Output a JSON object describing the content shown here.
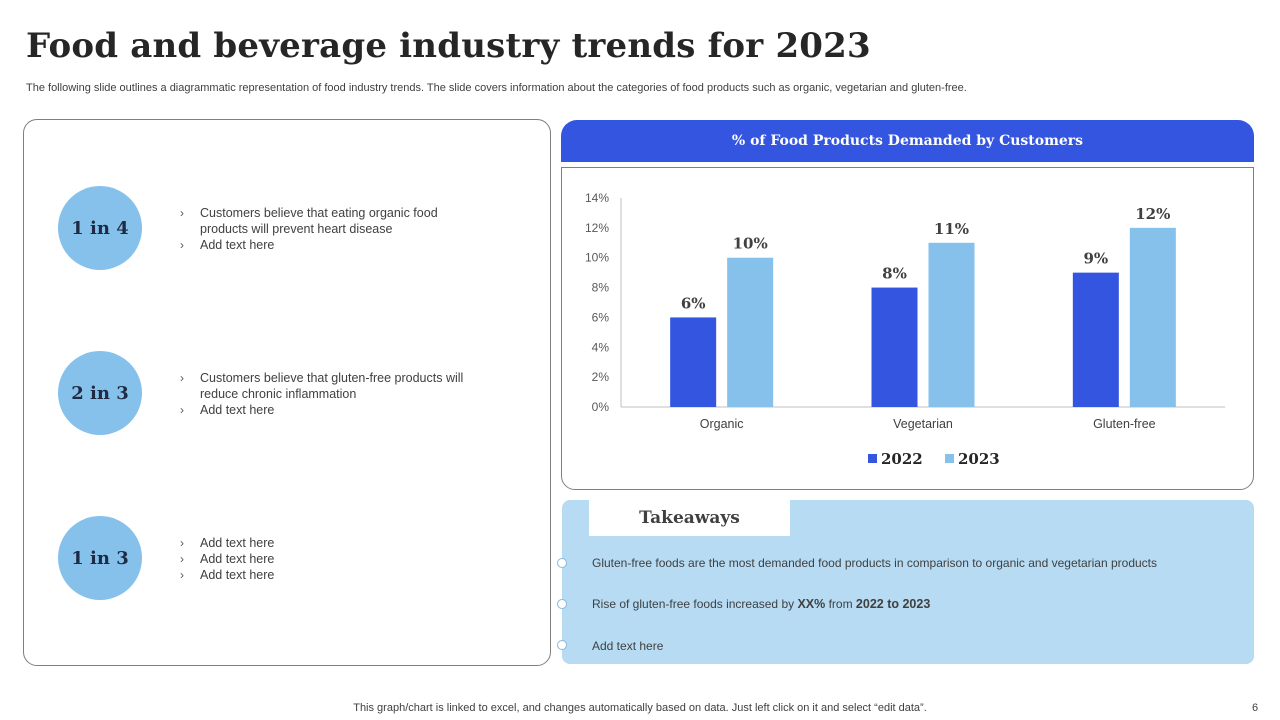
{
  "title": "Food and beverage industry trends for 2023",
  "subtitle": "The following slide outlines a diagrammatic representation of food industry trends. The slide covers information about the categories of food products such as organic, vegetarian and gluten-free.",
  "stats": [
    {
      "label": "1 in 4",
      "bullets": [
        "Customers believe  that eating organic food products will prevent  heart disease",
        "Add text here"
      ]
    },
    {
      "label": "2 in 3",
      "bullets": [
        "Customers believe  that gluten-free  products will reduce chronic inflammation",
        "Add text here"
      ]
    },
    {
      "label": "1 in 3",
      "bullets": [
        "Add text here",
        "Add text here",
        "Add text here"
      ]
    }
  ],
  "bullet_glyph": "›",
  "chart_header": "% of Food Products Demanded by Customers",
  "chart_data": {
    "type": "bar",
    "title": "% of Food Products Demanded by Customers",
    "categories": [
      "Organic",
      "Vegetarian",
      "Gluten-free"
    ],
    "series": [
      {
        "name": "2022",
        "values": [
          6,
          8,
          9
        ],
        "color": "#3355e0"
      },
      {
        "name": "2023",
        "values": [
          10,
          11,
          12
        ],
        "color": "#85c1eb"
      }
    ],
    "ylim": [
      0,
      14
    ],
    "yticks": [
      0,
      2,
      4,
      6,
      8,
      10,
      12,
      14
    ],
    "tick_suffix": "%",
    "label_suffix": "%",
    "legend_position": "bottom",
    "grid": false,
    "xlabel": "",
    "ylabel": ""
  },
  "takeaways": {
    "heading": "Takeaways",
    "item1": "Gluten-free foods are the most demanded food products in comparison to organic and vegetarian products",
    "item2": {
      "prefix": "Rise of gluten-free foods increased by ",
      "highlight": "XX%",
      "middle": "  from ",
      "range": "2022 to 2023"
    },
    "item3": "Add text here"
  },
  "footer": "This graph/chart is linked to excel,  and changes automatically based on data. Just left click on it and select “edit data”.",
  "page_number": "6",
  "colors": {
    "accent": "#3355e0",
    "light_accent": "#85c1eb",
    "takeaway_bg": "#b6dbf3"
  }
}
